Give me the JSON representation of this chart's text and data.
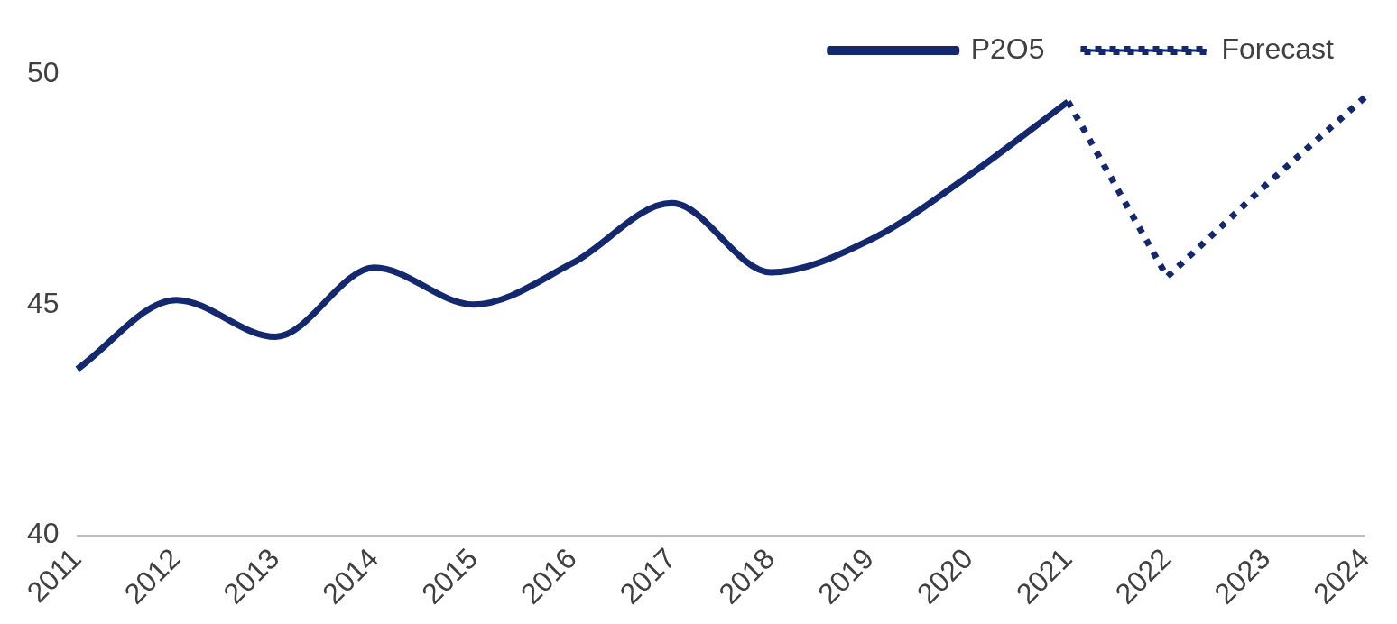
{
  "chart_data": {
    "type": "line",
    "categories": [
      "2011",
      "2012",
      "2013",
      "2014",
      "2015",
      "2016",
      "2017",
      "2018",
      "2019",
      "2020",
      "2021",
      "2022",
      "2023",
      "2024"
    ],
    "series": [
      {
        "name": "P2O5",
        "color": "#14286e",
        "line_style": "solid",
        "values": [
          43.6,
          45.1,
          44.3,
          45.8,
          45.0,
          45.9,
          47.2,
          45.7,
          46.4,
          47.8,
          49.4,
          null,
          null,
          null
        ]
      },
      {
        "name": "Forecast",
        "color": "#14286e",
        "line_style": "dotted",
        "values": [
          null,
          null,
          null,
          null,
          null,
          null,
          null,
          null,
          null,
          null,
          49.4,
          45.6,
          47.6,
          49.5
        ]
      }
    ],
    "ylim": [
      40,
      50
    ],
    "yticks": [
      40,
      45,
      50
    ],
    "grid": false,
    "legend": "top right",
    "marker": "none"
  }
}
